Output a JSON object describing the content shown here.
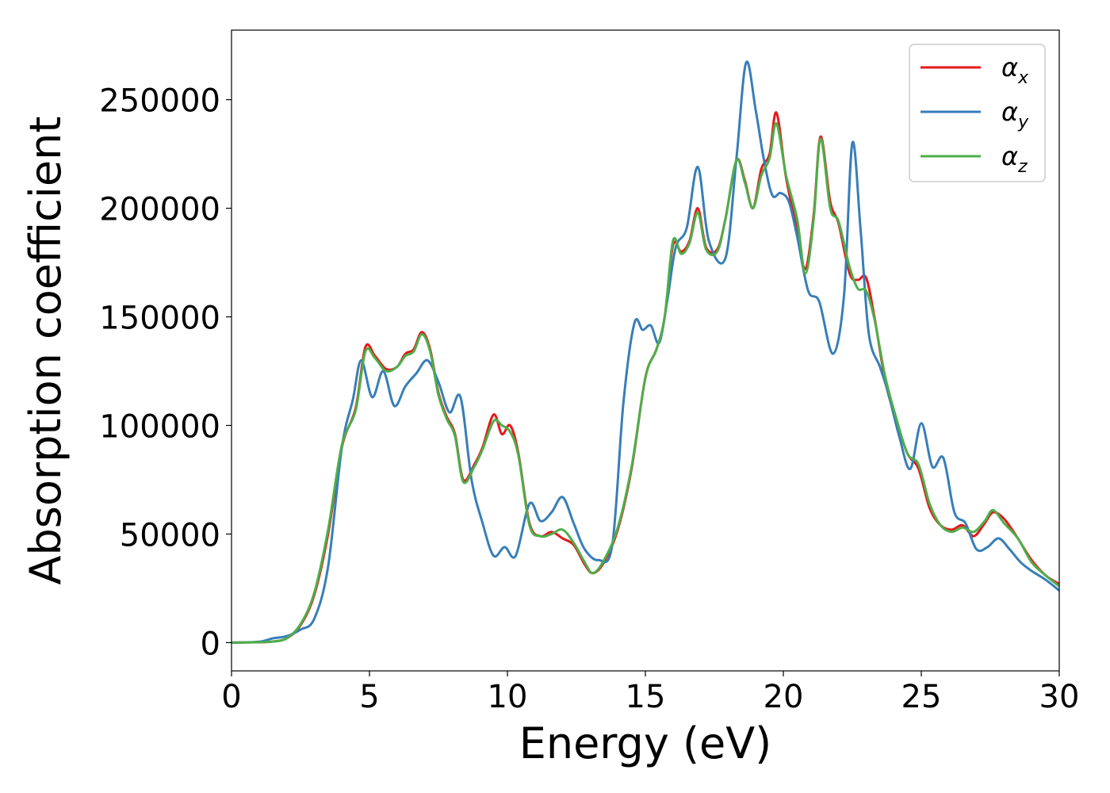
{
  "chart_data": {
    "type": "line",
    "title": "",
    "xlabel": "Energy (eV)",
    "ylabel": "Absorption coefficient",
    "xlim": [
      0,
      30
    ],
    "ylim": [
      -13000,
      282000
    ],
    "xticks": [
      "0",
      "5",
      "10",
      "15",
      "20",
      "25",
      "30"
    ],
    "xtick_values": [
      0,
      5,
      10,
      15,
      20,
      25,
      30
    ],
    "yticks": [
      "0",
      "50000",
      "100000",
      "150000",
      "200000",
      "250000"
    ],
    "ytick_values": [
      0,
      50000,
      100000,
      150000,
      200000,
      250000
    ],
    "grid": false,
    "legend_position": "top-right",
    "series": [
      {
        "name": "α",
        "subscript": "x",
        "color": "#e41a1c",
        "points": [
          [
            0,
            0
          ],
          [
            1,
            200
          ],
          [
            1.5,
            500
          ],
          [
            2,
            2000
          ],
          [
            2.5,
            8000
          ],
          [
            3,
            22000
          ],
          [
            3.5,
            50000
          ],
          [
            4,
            90000
          ],
          [
            4.5,
            108000
          ],
          [
            4.85,
            136000
          ],
          [
            5.2,
            132000
          ],
          [
            5.6,
            126000
          ],
          [
            6,
            127000
          ],
          [
            6.3,
            133000
          ],
          [
            6.6,
            135000
          ],
          [
            6.9,
            143000
          ],
          [
            7.2,
            135000
          ],
          [
            7.5,
            115000
          ],
          [
            7.8,
            104000
          ],
          [
            8.1,
            96000
          ],
          [
            8.4,
            75000
          ],
          [
            8.8,
            82000
          ],
          [
            9.1,
            90000
          ],
          [
            9.5,
            105000
          ],
          [
            9.8,
            96000
          ],
          [
            10.1,
            100000
          ],
          [
            10.4,
            87000
          ],
          [
            10.8,
            55000
          ],
          [
            11.2,
            49000
          ],
          [
            11.6,
            51000
          ],
          [
            12,
            48000
          ],
          [
            12.4,
            45000
          ],
          [
            12.8,
            36000
          ],
          [
            13.1,
            32000
          ],
          [
            13.5,
            37000
          ],
          [
            14,
            52000
          ],
          [
            14.5,
            80000
          ],
          [
            15,
            122000
          ],
          [
            15.4,
            135000
          ],
          [
            15.7,
            150000
          ],
          [
            16,
            183000
          ],
          [
            16.3,
            180000
          ],
          [
            16.6,
            185000
          ],
          [
            16.9,
            200000
          ],
          [
            17.2,
            182000
          ],
          [
            17.6,
            181000
          ],
          [
            17.9,
            195000
          ],
          [
            18.3,
            222000
          ],
          [
            18.6,
            213000
          ],
          [
            18.9,
            200000
          ],
          [
            19.2,
            218000
          ],
          [
            19.5,
            225000
          ],
          [
            19.75,
            244000
          ],
          [
            20.1,
            214000
          ],
          [
            20.5,
            190000
          ],
          [
            20.8,
            172000
          ],
          [
            21.1,
            197000
          ],
          [
            21.35,
            233000
          ],
          [
            21.7,
            203000
          ],
          [
            22,
            193000
          ],
          [
            22.4,
            170000
          ],
          [
            22.7,
            167000
          ],
          [
            23,
            168000
          ],
          [
            23.3,
            150000
          ],
          [
            23.7,
            120000
          ],
          [
            24.1,
            102000
          ],
          [
            24.5,
            87000
          ],
          [
            24.9,
            80000
          ],
          [
            25.3,
            62000
          ],
          [
            25.7,
            54000
          ],
          [
            26.1,
            52000
          ],
          [
            26.5,
            54000
          ],
          [
            26.9,
            49000
          ],
          [
            27.3,
            55000
          ],
          [
            27.6,
            60000
          ],
          [
            28,
            57000
          ],
          [
            28.5,
            48000
          ],
          [
            29,
            38000
          ],
          [
            29.5,
            31000
          ],
          [
            30,
            27000
          ]
        ]
      },
      {
        "name": "α",
        "subscript": "y",
        "color": "#377eb8",
        "points": [
          [
            0,
            0
          ],
          [
            1,
            400
          ],
          [
            1.5,
            2000
          ],
          [
            2,
            3000
          ],
          [
            2.5,
            6000
          ],
          [
            3,
            11000
          ],
          [
            3.5,
            35000
          ],
          [
            4,
            90000
          ],
          [
            4.4,
            112000
          ],
          [
            4.7,
            130000
          ],
          [
            5.1,
            113000
          ],
          [
            5.5,
            125000
          ],
          [
            5.9,
            109000
          ],
          [
            6.3,
            118000
          ],
          [
            6.7,
            124000
          ],
          [
            7.1,
            130000
          ],
          [
            7.5,
            120000
          ],
          [
            7.9,
            106000
          ],
          [
            8.3,
            113000
          ],
          [
            8.7,
            75000
          ],
          [
            9.1,
            55000
          ],
          [
            9.5,
            40000
          ],
          [
            9.9,
            44000
          ],
          [
            10.3,
            40000
          ],
          [
            10.8,
            64000
          ],
          [
            11.2,
            56000
          ],
          [
            11.6,
            60000
          ],
          [
            12,
            67000
          ],
          [
            12.4,
            55000
          ],
          [
            12.8,
            43000
          ],
          [
            13.3,
            38000
          ],
          [
            13.8,
            45000
          ],
          [
            14.2,
            110000
          ],
          [
            14.6,
            147000
          ],
          [
            14.9,
            144000
          ],
          [
            15.2,
            146000
          ],
          [
            15.5,
            138000
          ],
          [
            15.8,
            158000
          ],
          [
            16.1,
            182000
          ],
          [
            16.5,
            191000
          ],
          [
            16.9,
            219000
          ],
          [
            17.3,
            185000
          ],
          [
            17.9,
            177000
          ],
          [
            18.3,
            223000
          ],
          [
            18.65,
            267000
          ],
          [
            19,
            245000
          ],
          [
            19.3,
            222000
          ],
          [
            19.6,
            206000
          ],
          [
            19.9,
            207000
          ],
          [
            20.2,
            203000
          ],
          [
            20.5,
            187000
          ],
          [
            20.9,
            162000
          ],
          [
            21.3,
            157000
          ],
          [
            21.8,
            133000
          ],
          [
            22.2,
            160000
          ],
          [
            22.5,
            230000
          ],
          [
            22.8,
            190000
          ],
          [
            23.1,
            142000
          ],
          [
            23.5,
            127000
          ],
          [
            23.8,
            115000
          ],
          [
            24.2,
            95000
          ],
          [
            24.6,
            80000
          ],
          [
            25,
            101000
          ],
          [
            25.4,
            81000
          ],
          [
            25.8,
            85000
          ],
          [
            26.2,
            60000
          ],
          [
            26.6,
            55000
          ],
          [
            27,
            43000
          ],
          [
            27.4,
            44000
          ],
          [
            27.8,
            48000
          ],
          [
            28.2,
            43000
          ],
          [
            28.6,
            37000
          ],
          [
            29,
            33000
          ],
          [
            29.5,
            29000
          ],
          [
            30,
            24000
          ]
        ]
      },
      {
        "name": "α",
        "subscript": "z",
        "color": "#4daf4a",
        "points": [
          [
            0,
            0
          ],
          [
            1,
            200
          ],
          [
            1.5,
            500
          ],
          [
            2,
            2000
          ],
          [
            2.5,
            8500
          ],
          [
            3,
            23000
          ],
          [
            3.5,
            52000
          ],
          [
            4,
            91000
          ],
          [
            4.5,
            107000
          ],
          [
            4.85,
            134000
          ],
          [
            5.2,
            131000
          ],
          [
            5.6,
            125000
          ],
          [
            6,
            127000
          ],
          [
            6.3,
            132000
          ],
          [
            6.6,
            134000
          ],
          [
            6.9,
            142000
          ],
          [
            7.2,
            134000
          ],
          [
            7.5,
            114000
          ],
          [
            7.8,
            103000
          ],
          [
            8.1,
            95000
          ],
          [
            8.4,
            74000
          ],
          [
            8.8,
            81000
          ],
          [
            9.1,
            89000
          ],
          [
            9.5,
            102000
          ],
          [
            9.8,
            100000
          ],
          [
            10.1,
            97000
          ],
          [
            10.4,
            86000
          ],
          [
            10.8,
            54000
          ],
          [
            11.2,
            49000
          ],
          [
            11.6,
            50000
          ],
          [
            12,
            52000
          ],
          [
            12.4,
            46000
          ],
          [
            12.8,
            37000
          ],
          [
            13.1,
            32000
          ],
          [
            13.5,
            38000
          ],
          [
            14,
            53000
          ],
          [
            14.5,
            81000
          ],
          [
            15,
            122000
          ],
          [
            15.4,
            135000
          ],
          [
            15.7,
            150000
          ],
          [
            16,
            185000
          ],
          [
            16.3,
            179000
          ],
          [
            16.6,
            184000
          ],
          [
            16.9,
            198000
          ],
          [
            17.2,
            181000
          ],
          [
            17.6,
            180000
          ],
          [
            17.9,
            195000
          ],
          [
            18.3,
            222000
          ],
          [
            18.6,
            212000
          ],
          [
            18.9,
            200000
          ],
          [
            19.2,
            215000
          ],
          [
            19.5,
            223000
          ],
          [
            19.75,
            239000
          ],
          [
            20.1,
            215000
          ],
          [
            20.5,
            195000
          ],
          [
            20.8,
            170000
          ],
          [
            21.1,
            195000
          ],
          [
            21.35,
            232000
          ],
          [
            21.7,
            200000
          ],
          [
            22,
            194000
          ],
          [
            22.4,
            173000
          ],
          [
            22.7,
            163000
          ],
          [
            23,
            162000
          ],
          [
            23.3,
            149000
          ],
          [
            23.7,
            122000
          ],
          [
            24.1,
            103000
          ],
          [
            24.5,
            87000
          ],
          [
            24.9,
            82000
          ],
          [
            25.3,
            64000
          ],
          [
            25.7,
            54000
          ],
          [
            26.1,
            51000
          ],
          [
            26.5,
            53000
          ],
          [
            26.9,
            51000
          ],
          [
            27.3,
            56000
          ],
          [
            27.6,
            61000
          ],
          [
            28,
            55000
          ],
          [
            28.5,
            48000
          ],
          [
            29,
            37000
          ],
          [
            29.5,
            31000
          ],
          [
            30,
            26000
          ]
        ]
      }
    ]
  }
}
